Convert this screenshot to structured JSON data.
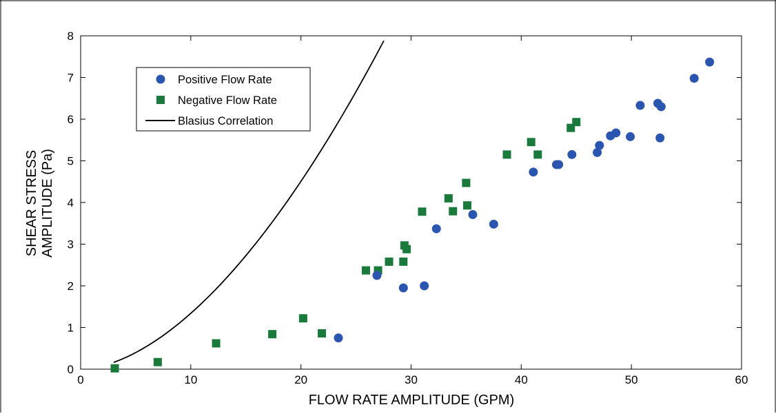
{
  "chart_data": {
    "type": "scatter",
    "xlabel": "FLOW RATE AMPLITUDE (GPM)",
    "ylabel_line1": "SHEAR STRESS",
    "ylabel_line2": "AMPLITUDE (Pa)",
    "xlim": [
      0,
      60
    ],
    "ylim": [
      0,
      8
    ],
    "xticks": [
      0,
      10,
      20,
      30,
      40,
      50,
      60
    ],
    "yticks": [
      0,
      1,
      2,
      3,
      4,
      5,
      6,
      7,
      8
    ],
    "grid": false,
    "legend_position": "top-left",
    "series": [
      {
        "name": "Positive Flow Rate",
        "marker": "circle",
        "color": "#2b56b0",
        "points": [
          [
            23.4,
            0.75
          ],
          [
            26.9,
            2.25
          ],
          [
            29.3,
            1.95
          ],
          [
            31.2,
            2.0
          ],
          [
            32.3,
            3.37
          ],
          [
            35.6,
            3.71
          ],
          [
            37.5,
            3.48
          ],
          [
            41.1,
            4.73
          ],
          [
            43.2,
            4.91
          ],
          [
            43.4,
            4.91
          ],
          [
            44.6,
            5.15
          ],
          [
            46.9,
            5.2
          ],
          [
            47.1,
            5.37
          ],
          [
            48.1,
            5.6
          ],
          [
            48.6,
            5.67
          ],
          [
            49.9,
            5.58
          ],
          [
            50.8,
            6.33
          ],
          [
            52.4,
            6.38
          ],
          [
            52.7,
            6.3
          ],
          [
            52.6,
            5.55
          ],
          [
            55.7,
            6.98
          ],
          [
            57.1,
            7.37
          ]
        ]
      },
      {
        "name": "Negative Flow Rate",
        "marker": "square",
        "color": "#1a7a3c",
        "points": [
          [
            3.1,
            0.02
          ],
          [
            7.0,
            0.17
          ],
          [
            12.3,
            0.62
          ],
          [
            17.4,
            0.84
          ],
          [
            20.2,
            1.22
          ],
          [
            21.9,
            0.86
          ],
          [
            25.9,
            2.37
          ],
          [
            27.0,
            2.37
          ],
          [
            28.0,
            2.58
          ],
          [
            29.3,
            2.58
          ],
          [
            29.4,
            2.97
          ],
          [
            29.6,
            2.88
          ],
          [
            31.0,
            3.78
          ],
          [
            33.4,
            4.1
          ],
          [
            33.8,
            3.79
          ],
          [
            35.0,
            4.47
          ],
          [
            35.1,
            3.93
          ],
          [
            38.7,
            5.15
          ],
          [
            40.9,
            5.45
          ],
          [
            41.5,
            5.15
          ],
          [
            44.5,
            5.79
          ],
          [
            45.0,
            5.93
          ]
        ]
      },
      {
        "name": "Blasius Correlation",
        "marker": "line",
        "color": "#000000",
        "equation_coefficient": 0.02383,
        "equation_exponent": 1.75,
        "x_range": [
          3.0,
          57.5
        ]
      }
    ]
  }
}
